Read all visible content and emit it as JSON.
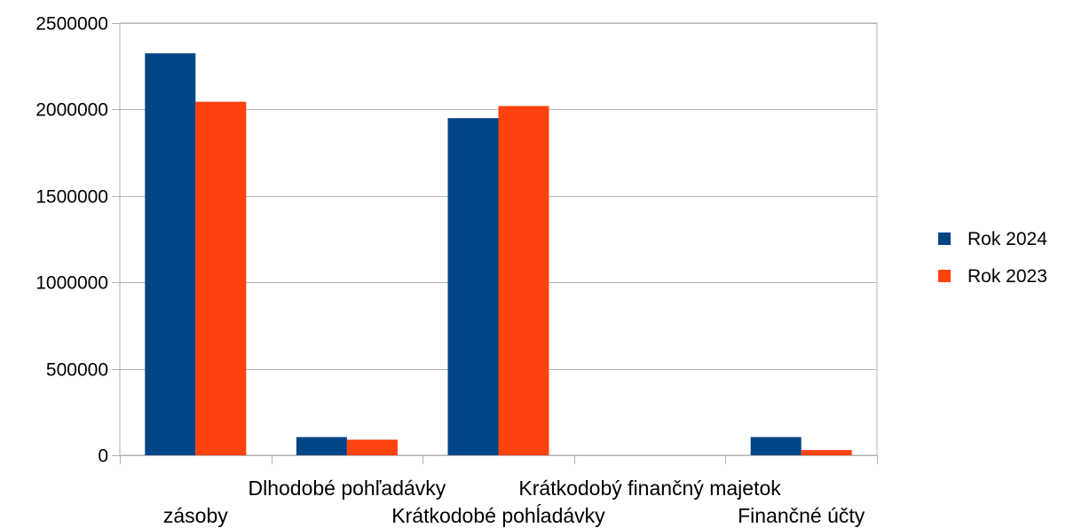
{
  "chart_data": {
    "type": "bar",
    "categories": [
      "zásoby",
      "Dlhodobé pohľadávky",
      "Krátkodobé pohĺadávky",
      "Krátkodobý finančný majetok",
      "Finančné účty"
    ],
    "series": [
      {
        "name": "Rok 2024",
        "color": "#004586",
        "values": [
          2325000,
          105000,
          1950000,
          0,
          105000
        ]
      },
      {
        "name": "Rok 2023",
        "color": "#ff420e",
        "values": [
          2045000,
          90000,
          2020000,
          0,
          30000
        ]
      }
    ],
    "y_ticks": [
      "0",
      "500000",
      "1000000",
      "1500000",
      "2000000",
      "2500000"
    ],
    "ylim": [
      0,
      2500000
    ],
    "grid": true,
    "legend_position": "right"
  }
}
